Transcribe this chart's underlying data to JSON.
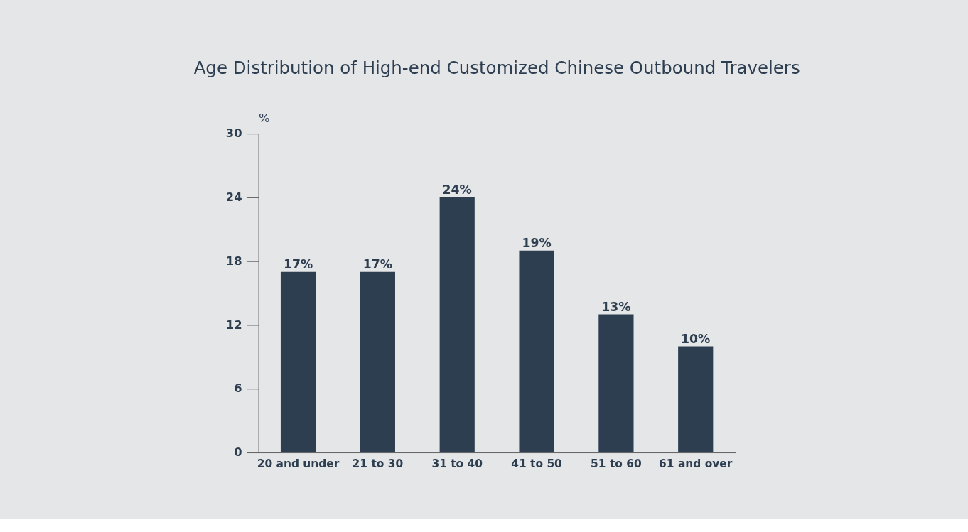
{
  "chart_data": {
    "type": "bar",
    "title": "Age Distribution of High-end Customized Chinese Outbound Travelers",
    "ylabel": "%",
    "categories": [
      "20 and under",
      "21 to 30",
      "31 to 40",
      "41 to 50",
      "51 to 60",
      "61 and over"
    ],
    "values": [
      17,
      17,
      24,
      19,
      13,
      10
    ],
    "value_labels": [
      "17%",
      "17%",
      "24%",
      "19%",
      "13%",
      "10%"
    ],
    "color": "#2d3e50",
    "ylim": [
      0,
      30
    ],
    "yticks": [
      0,
      6,
      12,
      18,
      24,
      30
    ],
    "grid": false
  }
}
